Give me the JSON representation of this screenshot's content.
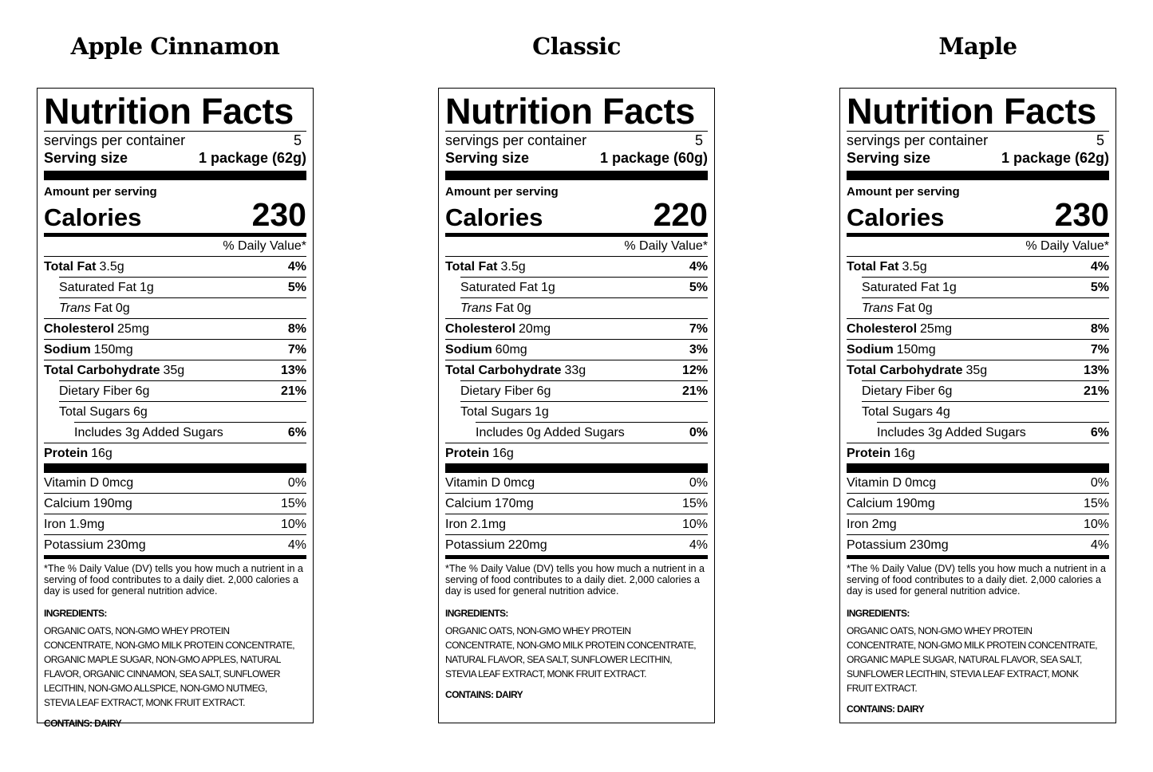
{
  "labels": [
    {
      "flavor": "Apple Cinnamon",
      "title": "Nutrition Facts",
      "servings_label": "servings per container",
      "servings": 5,
      "serving_size_label": "Serving size",
      "serving_size": "1 package (62g)",
      "amount_label": "Amount per serving",
      "calories_label": "Calories",
      "calories": 230,
      "dv_header": "% Daily Value*",
      "nutrients": [
        {
          "name": "Total Fat",
          "amount": "3.5g",
          "dv": "4%",
          "bold": true,
          "indent": 0
        },
        {
          "name": "Saturated Fat",
          "amount": "1g",
          "dv": "5%",
          "bold": false,
          "indent": 1
        },
        {
          "italic": "Trans",
          "name": "Fat",
          "amount": "0g",
          "bold": false,
          "indent": 1
        },
        {
          "name": "Cholesterol",
          "amount": "25mg",
          "dv": "8%",
          "bold": true,
          "indent": 0
        },
        {
          "name": "Sodium",
          "amount": "150mg",
          "dv": "7%",
          "bold": true,
          "indent": 0
        },
        {
          "name": "Total Carbohydrate",
          "amount": "35g",
          "dv": "13%",
          "bold": true,
          "indent": 0
        },
        {
          "name": "Dietary Fiber",
          "amount": "6g",
          "dv": "21%",
          "bold": false,
          "indent": 1
        },
        {
          "name": "Total Sugars",
          "amount": "6g",
          "bold": false,
          "indent": 1
        },
        {
          "name": "Includes 3g Added Sugars",
          "dv": "6%",
          "bold": false,
          "indent": 2
        },
        {
          "name": "Protein",
          "amount": "16g",
          "bold": true,
          "indent": 0
        }
      ],
      "vitamins": [
        {
          "name": "Vitamin D",
          "amount": "0mcg",
          "dv": "0%"
        },
        {
          "name": "Calcium",
          "amount": "190mg",
          "dv": "15%"
        },
        {
          "name": "Iron",
          "amount": "1.9mg",
          "dv": "10%"
        },
        {
          "name": "Potassium",
          "amount": "230mg",
          "dv": "4%"
        }
      ],
      "footnote": "*The % Daily Value (DV) tells you how much a nutrient in a serving of food contributes to a daily diet. 2,000 calories a day is used for general nutrition advice.",
      "ingredients_label": "INGREDIENTS:",
      "ingredients": "ORGANIC OATS, NON-GMO WHEY PROTEIN CONCENTRATE, NON-GMO MILK PROTEIN CONCENTRATE, ORGANIC MAPLE SUGAR, NON-GMO APPLES, NATURAL FLAVOR, ORGANIC CINNAMON, SEA SALT, SUNFLOWER LECITHIN, NON-GMO ALLSPICE, NON-GMO NUTMEG, STEVIA LEAF EXTRACT, MONK FRUIT EXTRACT.",
      "contains": "CONTAINS: DAIRY"
    },
    {
      "flavor": "Classic",
      "title": "Nutrition Facts",
      "servings_label": "servings per container",
      "servings": 5,
      "serving_size_label": "Serving size",
      "serving_size": "1 package (60g)",
      "amount_label": "Amount per serving",
      "calories_label": "Calories",
      "calories": 220,
      "dv_header": "% Daily Value*",
      "nutrients": [
        {
          "name": "Total Fat",
          "amount": "3.5g",
          "dv": "4%",
          "bold": true,
          "indent": 0
        },
        {
          "name": "Saturated Fat",
          "amount": "1g",
          "dv": "5%",
          "bold": false,
          "indent": 1
        },
        {
          "italic": "Trans",
          "name": "Fat",
          "amount": "0g",
          "bold": false,
          "indent": 1
        },
        {
          "name": "Cholesterol",
          "amount": "20mg",
          "dv": "7%",
          "bold": true,
          "indent": 0
        },
        {
          "name": "Sodium",
          "amount": "60mg",
          "dv": "3%",
          "bold": true,
          "indent": 0
        },
        {
          "name": "Total Carbohydrate",
          "amount": "33g",
          "dv": "12%",
          "bold": true,
          "indent": 0
        },
        {
          "name": "Dietary Fiber",
          "amount": "6g",
          "dv": "21%",
          "bold": false,
          "indent": 1
        },
        {
          "name": "Total Sugars",
          "amount": "1g",
          "bold": false,
          "indent": 1
        },
        {
          "name": "Includes 0g Added Sugars",
          "dv": "0%",
          "bold": false,
          "indent": 2
        },
        {
          "name": "Protein",
          "amount": "16g",
          "bold": true,
          "indent": 0
        }
      ],
      "vitamins": [
        {
          "name": "Vitamin D",
          "amount": "0mcg",
          "dv": "0%"
        },
        {
          "name": "Calcium",
          "amount": "170mg",
          "dv": "15%"
        },
        {
          "name": "Iron",
          "amount": "2.1mg",
          "dv": "10%"
        },
        {
          "name": "Potassium",
          "amount": "220mg",
          "dv": "4%"
        }
      ],
      "footnote": "*The % Daily Value (DV) tells you how much a nutrient in a serving of food contributes to a daily diet. 2,000 calories a day is used for general nutrition advice.",
      "ingredients_label": "INGREDIENTS:",
      "ingredients": "ORGANIC OATS, NON-GMO WHEY PROTEIN CONCENTRATE, NON-GMO MILK PROTEIN CONCENTRATE, NATURAL FLAVOR, SEA SALT, SUNFLOWER LECITHIN, STEVIA LEAF EXTRACT, MONK FRUIT EXTRACT.",
      "contains": "CONTAINS: DAIRY"
    },
    {
      "flavor": "Maple",
      "title": "Nutrition Facts",
      "servings_label": "servings per container",
      "servings": 5,
      "serving_size_label": "Serving size",
      "serving_size": "1 package (62g)",
      "amount_label": "Amount per serving",
      "calories_label": "Calories",
      "calories": 230,
      "dv_header": "% Daily Value*",
      "nutrients": [
        {
          "name": "Total Fat",
          "amount": "3.5g",
          "dv": "4%",
          "bold": true,
          "indent": 0
        },
        {
          "name": "Saturated Fat",
          "amount": "1g",
          "dv": "5%",
          "bold": false,
          "indent": 1
        },
        {
          "italic": "Trans",
          "name": "Fat",
          "amount": "0g",
          "bold": false,
          "indent": 1
        },
        {
          "name": "Cholesterol",
          "amount": "25mg",
          "dv": "8%",
          "bold": true,
          "indent": 0
        },
        {
          "name": "Sodium",
          "amount": "150mg",
          "dv": "7%",
          "bold": true,
          "indent": 0
        },
        {
          "name": "Total Carbohydrate",
          "amount": "35g",
          "dv": "13%",
          "bold": true,
          "indent": 0
        },
        {
          "name": "Dietary Fiber",
          "amount": "6g",
          "dv": "21%",
          "bold": false,
          "indent": 1
        },
        {
          "name": "Total Sugars",
          "amount": "4g",
          "bold": false,
          "indent": 1
        },
        {
          "name": "Includes 3g Added Sugars",
          "dv": "6%",
          "bold": false,
          "indent": 2
        },
        {
          "name": "Protein",
          "amount": "16g",
          "bold": true,
          "indent": 0
        }
      ],
      "vitamins": [
        {
          "name": "Vitamin D",
          "amount": "0mcg",
          "dv": "0%"
        },
        {
          "name": "Calcium",
          "amount": "190mg",
          "dv": "15%"
        },
        {
          "name": "Iron",
          "amount": "2mg",
          "dv": "10%"
        },
        {
          "name": "Potassium",
          "amount": "230mg",
          "dv": "4%"
        }
      ],
      "footnote": "*The % Daily Value (DV) tells you how much a nutrient in a serving of food contributes to a daily diet. 2,000 calories a day is used for general nutrition advice.",
      "ingredients_label": "INGREDIENTS:",
      "ingredients": "ORGANIC OATS, NON-GMO WHEY PROTEIN CONCENTRATE, NON-GMO MILK PROTEIN CONCENTRATE, ORGANIC MAPLE SUGAR, NATURAL FLAVOR, SEA SALT, SUNFLOWER LECITHIN, STEVIA LEAF EXTRACT, MONK FRUIT EXTRACT.",
      "contains": "CONTAINS: DAIRY"
    }
  ]
}
